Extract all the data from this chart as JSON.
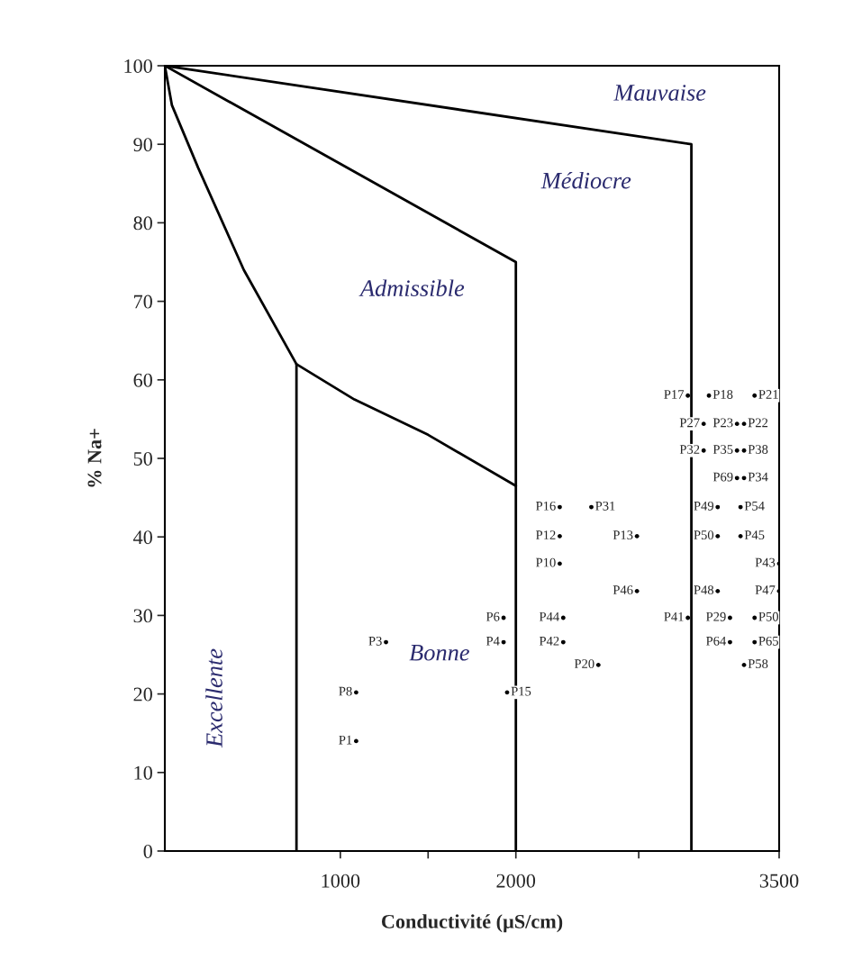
{
  "chart_data": {
    "type": "scatter",
    "xlabel": "Conductivité (µS/cm)",
    "ylabel": "% Na+",
    "xlim": [
      0,
      3500
    ],
    "ylim": [
      0,
      100
    ],
    "xticks": [
      1000,
      {
        "value": 1500,
        "label": null
      },
      2000,
      {
        "value": 2700,
        "label": null
      },
      3500
    ],
    "yticks": [
      0,
      10,
      20,
      30,
      40,
      50,
      60,
      70,
      80,
      90,
      100
    ],
    "grid": false,
    "legend": false,
    "series": [
      {
        "type": "line",
        "color": "#000000",
        "marker": "none",
        "x": [
          0,
          3000,
          3000
        ],
        "values": [
          100,
          90,
          0
        ]
      },
      {
        "type": "line",
        "color": "#000000",
        "marker": "none",
        "x": [
          0,
          2000,
          2000
        ],
        "values": [
          100,
          75,
          0
        ]
      },
      {
        "type": "line",
        "color": "#000000",
        "marker": "none",
        "x": [
          0,
          40,
          190,
          450,
          750,
          1080,
          1500,
          2000
        ],
        "values": [
          100,
          95,
          87,
          74,
          62,
          57.5,
          53,
          46.5
        ]
      },
      {
        "type": "line",
        "color": "#000000",
        "marker": "none",
        "x": [
          750,
          750
        ],
        "values": [
          62,
          0
        ]
      },
      {
        "color": "#000000",
        "marker": "circle",
        "x": [
          2980,
          3070,
          3260,
          3070,
          3260,
          3260,
          2250,
          2250,
          2690,
          2250,
          2690,
          3150,
          3150,
          3500,
          3150,
          3500,
          2980,
          3220,
          3220,
          1930,
          2270,
          1260,
          1930,
          2270,
          2470,
          1090,
          1090
        ],
        "values": [
          58,
          54.4,
          54.4,
          51,
          51,
          47.5,
          43.8,
          40.1,
          40.1,
          36.6,
          33.1,
          43.8,
          40.1,
          36.6,
          33.1,
          33.1,
          29.7,
          29.7,
          26.6,
          29.7,
          29.7,
          26.6,
          26.6,
          26.6,
          23.7,
          20.2,
          14
        ],
        "value_labels": [
          "P17",
          "P27",
          "P23",
          "P32",
          "P35",
          "P69",
          "P16",
          "P12",
          "P13",
          "P10",
          "P46",
          "P49",
          "P50",
          "P43",
          "P48",
          "P47",
          "P41",
          "P29",
          "P64",
          "P6",
          "P44",
          "P3",
          "P4",
          "P42",
          "P20",
          "P8",
          "P1"
        ]
      },
      {
        "color": "#000000",
        "marker": "circle",
        "x": [
          3100,
          3360,
          3300,
          3300,
          3300,
          3280,
          3280,
          2430,
          3360,
          3360,
          3300,
          1950
        ],
        "values": [
          58,
          58,
          54.4,
          51,
          47.5,
          43.8,
          40.1,
          43.8,
          29.7,
          26.6,
          23.7,
          20.2
        ],
        "value_labels": [
          "P18",
          "P21",
          "P22",
          "P38",
          "P34",
          "P54",
          "P45",
          "P31",
          "P50",
          "P65",
          "P58",
          "P15"
        ]
      }
    ],
    "annotations": [
      "Mauvaise",
      "Médiocre",
      "Admissible",
      "Bonne",
      "Excellente"
    ]
  }
}
